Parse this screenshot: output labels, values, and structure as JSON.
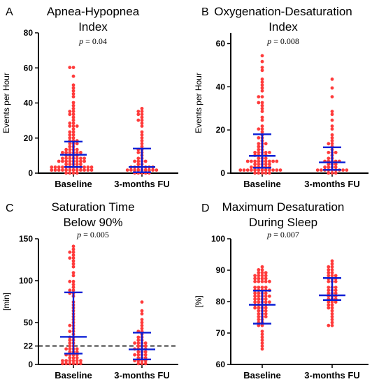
{
  "chart_data": [
    {
      "type": "scatter",
      "letter": "A",
      "title_lines": [
        "Apnea-Hypopnea",
        "Index"
      ],
      "p_label": "p",
      "p_value": "= 0.04",
      "ylabel": "Events per Hour",
      "ylim": [
        0,
        80
      ],
      "yticks": [
        "0",
        "20",
        "40",
        "60",
        "80"
      ],
      "categories": [
        "Baseline",
        "3-months FU"
      ],
      "marker": "circle",
      "series": [
        {
          "category": "Baseline",
          "median": 10.5,
          "q1": 3.5,
          "q3": 18,
          "values": [
            60,
            60,
            56,
            50,
            48,
            47,
            46,
            44,
            40,
            38,
            37,
            36,
            35,
            34,
            33,
            32,
            30,
            29,
            28,
            27,
            26,
            26,
            25,
            24,
            23,
            22,
            21,
            20,
            20,
            19,
            18,
            18,
            17,
            17,
            16,
            15,
            15,
            14,
            14,
            13,
            13,
            12,
            12,
            12,
            11,
            11,
            11,
            10,
            10,
            10,
            10,
            9,
            9,
            9,
            8,
            8,
            8,
            8,
            7,
            7,
            7,
            7,
            6,
            6,
            6,
            6,
            5,
            5,
            5,
            5,
            5,
            4,
            4,
            4,
            4,
            4,
            4,
            3,
            3,
            3,
            3,
            3,
            3,
            2,
            2,
            2,
            2,
            2,
            2,
            1,
            1,
            1,
            1,
            1,
            1,
            0.5,
            0.5,
            0.5,
            0.5
          ]
        },
        {
          "category": "3-months FU",
          "median": 3.5,
          "q1": 0.5,
          "q3": 14,
          "values": [
            37,
            36,
            35,
            34,
            33,
            32,
            31,
            30,
            28,
            26,
            24,
            22,
            20,
            18,
            16,
            15,
            14,
            13,
            12,
            11,
            10,
            9,
            8,
            7,
            7,
            6,
            6,
            5,
            5,
            4,
            4,
            4,
            3,
            3,
            3,
            3,
            2,
            2,
            2,
            2,
            1,
            1,
            1,
            1,
            1,
            0.5,
            0.5,
            0.5,
            0.5,
            0.5
          ]
        }
      ]
    },
    {
      "type": "scatter",
      "letter": "B",
      "title_lines": [
        "Oxygenation-Desaturation",
        "Index"
      ],
      "p_label": "p",
      "p_value": "= 0.008",
      "ylabel": "Events per Hour",
      "ylim": [
        0,
        65
      ],
      "yticks": [
        "0",
        "20",
        "40",
        "60"
      ],
      "categories": [
        "Baseline",
        "3-months FU"
      ],
      "marker": "circle",
      "series": [
        {
          "category": "Baseline",
          "median": 8,
          "q1": 2.5,
          "q3": 18,
          "values": [
            54,
            51,
            49,
            48,
            44,
            42,
            41,
            40,
            38,
            36,
            35,
            33,
            32,
            31,
            30,
            28,
            26,
            24,
            22,
            21,
            20,
            19,
            18,
            17,
            16,
            15,
            14,
            14,
            13,
            12,
            12,
            11,
            11,
            10,
            10,
            9,
            9,
            9,
            8,
            8,
            8,
            8,
            7,
            7,
            7,
            6,
            6,
            6,
            6,
            5,
            5,
            5,
            5,
            5,
            4,
            4,
            4,
            4,
            4,
            3,
            3,
            3,
            3,
            3,
            3,
            2,
            2,
            2,
            2,
            2,
            2,
            1,
            1,
            1,
            1,
            1,
            1,
            0.5,
            0.5,
            0.5,
            0.5,
            0.5
          ]
        },
        {
          "category": "3-months FU",
          "median": 5,
          "q1": 1.5,
          "q3": 12,
          "values": [
            43,
            40,
            36,
            28,
            27,
            24,
            22,
            20,
            18,
            16,
            15,
            14,
            13,
            12,
            11,
            10,
            9,
            9,
            8,
            7,
            7,
            6,
            6,
            5,
            5,
            5,
            4,
            4,
            4,
            3,
            3,
            3,
            3,
            2,
            2,
            2,
            2,
            1,
            1,
            1,
            1,
            1,
            0.5,
            0.5,
            0.5
          ]
        }
      ]
    },
    {
      "type": "scatter",
      "letter": "C",
      "title_lines": [
        "Saturation Time",
        "Below 90%"
      ],
      "p_label": "p",
      "p_value": "= 0.005",
      "ylabel": "[min]",
      "ylim": [
        0,
        150
      ],
      "yticks": [
        "0",
        "22",
        "50",
        "100",
        "150"
      ],
      "reference_line": 22,
      "categories": [
        "Baseline",
        "3-months FU"
      ],
      "marker": "circle",
      "series": [
        {
          "category": "Baseline",
          "median": 33,
          "q1": 13,
          "q3": 86,
          "values": [
            140,
            138,
            135,
            133,
            130,
            128,
            126,
            124,
            120,
            115,
            110,
            105,
            100,
            98,
            95,
            92,
            90,
            88,
            86,
            84,
            80,
            75,
            70,
            68,
            65,
            62,
            58,
            55,
            50,
            48,
            45,
            42,
            40,
            38,
            35,
            33,
            31,
            30,
            28,
            26,
            24,
            22,
            21,
            20,
            19,
            18,
            17,
            16,
            15,
            14,
            13,
            12,
            11,
            10,
            9,
            8,
            7,
            6,
            5,
            5,
            4,
            3,
            3,
            2,
            2,
            1,
            1,
            0.5,
            0.5
          ]
        },
        {
          "category": "3-months FU",
          "median": 18,
          "q1": 6,
          "q3": 38,
          "values": [
            75,
            65,
            60,
            55,
            50,
            45,
            42,
            40,
            38,
            36,
            34,
            32,
            30,
            28,
            27,
            26,
            25,
            24,
            23,
            22,
            21,
            20,
            19,
            18,
            17,
            16,
            15,
            14,
            13,
            12,
            11,
            10,
            9,
            8,
            7,
            6,
            5,
            4,
            3,
            2,
            1,
            0.5
          ]
        }
      ]
    },
    {
      "type": "scatter",
      "letter": "D",
      "title_lines": [
        "Maximum Desaturation",
        "During Sleep"
      ],
      "p_label": "p",
      "p_value": "= 0.007",
      "ylabel": "[%]",
      "ylim": [
        60,
        100
      ],
      "yticks": [
        "60",
        "70",
        "80",
        "90",
        "100"
      ],
      "categories": [
        "Baseline",
        "3-months FU"
      ],
      "marker": "circle",
      "series": [
        {
          "category": "Baseline",
          "median": 79,
          "q1": 73,
          "q3": 83.5,
          "values": [
            91,
            90,
            90,
            89,
            89,
            89,
            88,
            88,
            88,
            88,
            87,
            87,
            87,
            87,
            86,
            86,
            86,
            86,
            86,
            85,
            85,
            85,
            85,
            84,
            84,
            84,
            84,
            84,
            83,
            83,
            83,
            83,
            82,
            82,
            82,
            82,
            82,
            81,
            81,
            81,
            81,
            80,
            80,
            80,
            80,
            80,
            79,
            79,
            79,
            79,
            78,
            78,
            78,
            78,
            77,
            77,
            77,
            76,
            76,
            76,
            75,
            75,
            75,
            74,
            74,
            73,
            73,
            72,
            72,
            71,
            70,
            69,
            68,
            67,
            66,
            65
          ]
        },
        {
          "category": "3-months FU",
          "median": 82,
          "q1": 80.5,
          "q3": 87.5,
          "values": [
            93,
            92,
            91,
            91,
            90,
            90,
            89,
            89,
            88,
            88,
            88,
            87,
            87,
            87,
            86,
            86,
            86,
            85,
            85,
            85,
            84,
            84,
            84,
            83,
            83,
            83,
            82,
            82,
            82,
            81,
            81,
            81,
            80,
            80,
            80,
            79,
            79,
            78,
            78,
            77,
            76,
            75,
            74,
            73,
            72,
            72
          ]
        }
      ]
    }
  ]
}
